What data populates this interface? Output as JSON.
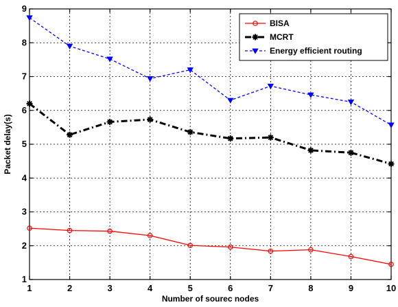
{
  "chart_data": {
    "type": "line",
    "title": "",
    "xlabel": "Number of sourec nodes",
    "ylabel": "Packet delay(s)",
    "xlim": [
      1,
      10
    ],
    "ylim": [
      1,
      9
    ],
    "xticks": [
      1,
      2,
      3,
      4,
      5,
      6,
      7,
      8,
      9,
      10
    ],
    "yticks": [
      1,
      2,
      3,
      4,
      5,
      6,
      7,
      8,
      9
    ],
    "grid": true,
    "legend_position": "top-right",
    "x": [
      1,
      2,
      3,
      4,
      5,
      6,
      7,
      8,
      9,
      10
    ],
    "series": [
      {
        "name": "BISA",
        "color": "#ff0000",
        "marker": "circle",
        "line_style": "solid",
        "values": [
          2.52,
          2.45,
          2.43,
          2.3,
          2.01,
          1.96,
          1.84,
          1.88,
          1.68,
          1.45
        ]
      },
      {
        "name": "MCRT",
        "color": "#000000",
        "marker": "star",
        "line_style": "dashdot",
        "values": [
          6.2,
          5.28,
          5.66,
          5.73,
          5.36,
          5.17,
          5.2,
          4.82,
          4.75,
          4.42
        ]
      },
      {
        "name": "Energy efficient routing",
        "color": "#0000ff",
        "marker": "triangle-down",
        "line_style": "dashed",
        "values": [
          8.74,
          7.9,
          7.52,
          6.94,
          7.2,
          6.3,
          6.72,
          6.46,
          6.25,
          5.57
        ]
      }
    ]
  }
}
